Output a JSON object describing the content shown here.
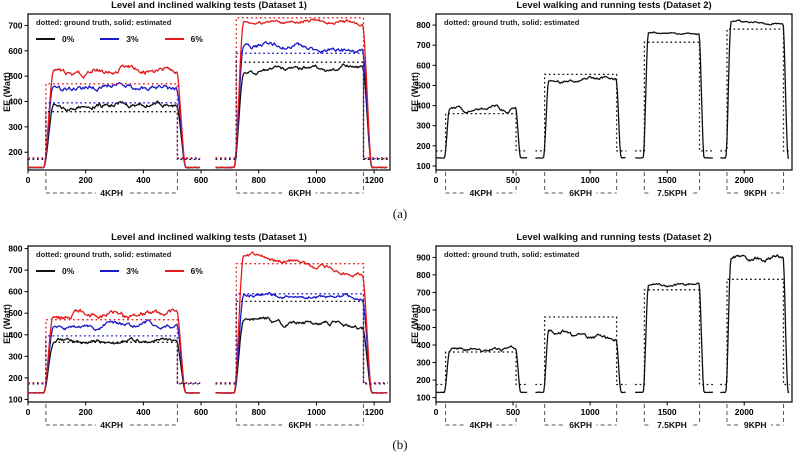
{
  "figure": {
    "captions": {
      "a": "(a)",
      "b": "(b)"
    }
  },
  "chart_data": [
    {
      "id": "a-left",
      "type": "line",
      "title": "Level and inclined walking tests (Dataset 1)",
      "ylabel": "EE (Watt)",
      "legend_note": "dotted: ground truth, solid: estimated",
      "legend_items": [
        {
          "label": "0%",
          "color": "#111111"
        },
        {
          "label": "3%",
          "color": "#1a1acc"
        },
        {
          "label": "6%",
          "color": "#e41b1b"
        }
      ],
      "xlim": [
        0,
        1255
      ],
      "ylim": [
        130,
        745
      ],
      "xticks": [
        0,
        200,
        400,
        600,
        800,
        1000,
        1200
      ],
      "yticks": [
        200,
        300,
        400,
        500,
        600,
        700
      ],
      "grid": false,
      "baseline": 140,
      "trials": [
        [
          0,
          597
        ],
        [
          650,
          1248
        ]
      ],
      "brackets": [
        {
          "label": "4KPH",
          "from": 62,
          "to": 518
        },
        {
          "label": "6KPH",
          "from": 722,
          "to": 1163
        }
      ],
      "series": [
        {
          "name": "0%",
          "color": "#111111",
          "rest": 172,
          "plateaus": [
            {
              "truth": 360,
              "est": [
                380,
                388
              ],
              "noise": 13
            },
            {
              "truth": 555,
              "est": [
                518,
                542
              ],
              "noise": 11
            }
          ]
        },
        {
          "name": "3%",
          "color": "#1a1acc",
          "rest": 175,
          "plateaus": [
            {
              "truth": 395,
              "est": [
                452,
                458
              ],
              "noise": 14
            },
            {
              "truth": 590,
              "est": [
                628,
                600
              ],
              "noise": 12
            }
          ]
        },
        {
          "name": "6%",
          "color": "#e41b1b",
          "rest": 178,
          "plateaus": [
            {
              "truth": 470,
              "est": [
                512,
                528
              ],
              "noise": 16
            },
            {
              "truth": 730,
              "est": [
                714,
                712
              ],
              "noise": 9
            }
          ]
        }
      ]
    },
    {
      "id": "a-right",
      "type": "line",
      "title": "Level walking and running tests (Dataset 2)",
      "ylabel": "EE (Watt)",
      "legend_note": "dotted: ground truth, solid: estimated",
      "legend_items": [],
      "xlim": [
        0,
        2310
      ],
      "ylim": [
        80,
        855
      ],
      "xticks": [
        0,
        500,
        1000,
        1500,
        2000
      ],
      "yticks": [
        100,
        200,
        300,
        400,
        500,
        600,
        700,
        800
      ],
      "grid": false,
      "baseline": 140,
      "trials": [
        [
          0,
          592
        ],
        [
          645,
          1235
        ],
        [
          1292,
          1798
        ],
        [
          1845,
          2295
        ]
      ],
      "brackets": [
        {
          "label": "4KPH",
          "from": 62,
          "to": 520
        },
        {
          "label": "6KPH",
          "from": 705,
          "to": 1172
        },
        {
          "label": "7.5KPH",
          "from": 1352,
          "to": 1710
        },
        {
          "label": "9KPH",
          "from": 1888,
          "to": 2255
        }
      ],
      "series": [
        {
          "name": "EE",
          "color": "#111111",
          "rest": 175,
          "plateaus": [
            {
              "truth": 360,
              "est": [
                378,
                382
              ],
              "noise": 12
            },
            {
              "truth": 555,
              "est": [
                520,
                538
              ],
              "noise": 9
            },
            {
              "truth": 715,
              "est": [
                762,
                756
              ],
              "noise": 4
            },
            {
              "truth": 780,
              "est": [
                818,
                806
              ],
              "noise": 5
            }
          ]
        }
      ]
    },
    {
      "id": "b-left",
      "type": "line",
      "title": "Level and inclined walking tests (Dataset 1)",
      "ylabel": "EE (Watt)",
      "legend_note": "dotted: ground truth, solid: estimated",
      "legend_items": [
        {
          "label": "0%",
          "color": "#111111"
        },
        {
          "label": "3%",
          "color": "#1a1acc"
        },
        {
          "label": "6%",
          "color": "#e41b1b"
        }
      ],
      "xlim": [
        0,
        1255
      ],
      "ylim": [
        88,
        812
      ],
      "xticks": [
        0,
        200,
        400,
        600,
        800,
        1000,
        1200
      ],
      "yticks": [
        100,
        200,
        300,
        400,
        500,
        600,
        700,
        800
      ],
      "grid": false,
      "baseline": 130,
      "trials": [
        [
          0,
          597
        ],
        [
          650,
          1248
        ]
      ],
      "brackets": [
        {
          "label": "4KPH",
          "from": 62,
          "to": 518
        },
        {
          "label": "6KPH",
          "from": 722,
          "to": 1163
        }
      ],
      "series": [
        {
          "name": "0%",
          "color": "#111111",
          "rest": 172,
          "plateaus": [
            {
              "truth": 365,
              "est": [
                366,
                372
              ],
              "noise": 11
            },
            {
              "truth": 555,
              "est": [
                474,
                436
              ],
              "noise": 14
            }
          ]
        },
        {
          "name": "3%",
          "color": "#1a1acc",
          "rest": 175,
          "plateaus": [
            {
              "truth": 395,
              "est": [
                432,
                452
              ],
              "noise": 13
            },
            {
              "truth": 590,
              "est": [
                584,
                572
              ],
              "noise": 12
            }
          ]
        },
        {
          "name": "6%",
          "color": "#e41b1b",
          "rest": 178,
          "plateaus": [
            {
              "truth": 470,
              "est": [
                488,
                504
              ],
              "noise": 17
            },
            {
              "truth": 730,
              "est": [
                786,
                676
              ],
              "noise": 13
            }
          ]
        }
      ]
    },
    {
      "id": "b-right",
      "type": "line",
      "title": "Level walking and running tests (Dataset 2)",
      "ylabel": "EE (Watt)",
      "legend_note": "dotted: ground truth, solid: estimated",
      "legend_items": [],
      "xlim": [
        0,
        2310
      ],
      "ylim": [
        75,
        965
      ],
      "xticks": [
        0,
        500,
        1000,
        1500,
        2000
      ],
      "yticks": [
        100,
        200,
        300,
        400,
        500,
        600,
        700,
        800,
        900
      ],
      "grid": false,
      "baseline": 130,
      "trials": [
        [
          0,
          592
        ],
        [
          645,
          1235
        ],
        [
          1292,
          1798
        ],
        [
          1845,
          2295
        ]
      ],
      "brackets": [
        {
          "label": "4KPH",
          "from": 62,
          "to": 520
        },
        {
          "label": "6KPH",
          "from": 705,
          "to": 1172
        },
        {
          "label": "7.5KPH",
          "from": 1352,
          "to": 1710
        },
        {
          "label": "9KPH",
          "from": 1888,
          "to": 2255
        }
      ],
      "series": [
        {
          "name": "EE",
          "color": "#111111",
          "rest": 175,
          "plateaus": [
            {
              "truth": 360,
              "est": [
                372,
                380
              ],
              "noise": 12
            },
            {
              "truth": 560,
              "est": [
                478,
                432
              ],
              "noise": 14
            },
            {
              "truth": 715,
              "est": [
                740,
                750
              ],
              "noise": 10
            },
            {
              "truth": 775,
              "est": [
                890,
                896
              ],
              "noise": 16
            }
          ]
        }
      ]
    }
  ]
}
